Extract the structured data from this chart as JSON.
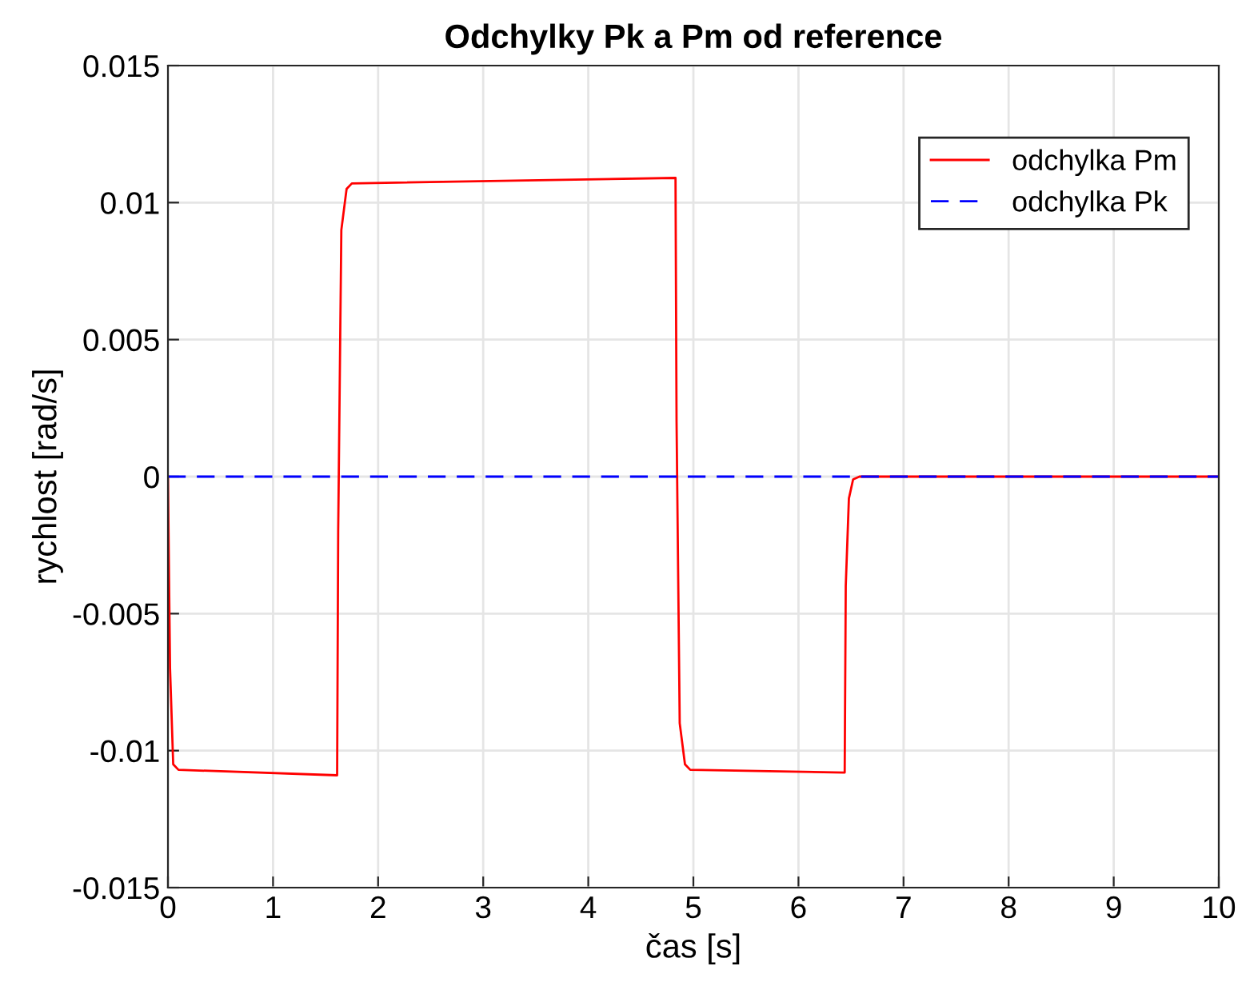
{
  "chart_data": {
    "type": "line",
    "title": "Odchylky Pk a Pm od reference",
    "xlabel": "čas [s]",
    "ylabel": "rychlost [rad/s]",
    "series": [
      {
        "name": "odchylka Pm",
        "color": "#ff0000",
        "line_style": "solid",
        "x": [
          0,
          0.02,
          0.05,
          0.1,
          1.61,
          1.62,
          1.65,
          1.7,
          1.75,
          4.83,
          4.84,
          4.87,
          4.92,
          4.97,
          6.44,
          6.45,
          6.48,
          6.52,
          6.58,
          10
        ],
        "values": [
          0,
          -0.007,
          -0.0105,
          -0.0107,
          -0.0109,
          -0.002,
          0.009,
          0.0105,
          0.0107,
          0.0109,
          0.002,
          -0.009,
          -0.0105,
          -0.0107,
          -0.0108,
          -0.004,
          -0.0008,
          -0.0001,
          0,
          0
        ]
      },
      {
        "name": "odchylka Pk",
        "color": "#0000ff",
        "line_style": "dashed",
        "x": [
          0,
          10
        ],
        "values": [
          0,
          0
        ]
      }
    ],
    "xlim": [
      0,
      10
    ],
    "xticks": [
      0,
      1,
      2,
      3,
      4,
      5,
      6,
      7,
      8,
      9,
      10
    ],
    "ylim": [
      -0.015,
      0.015
    ],
    "yticks": [
      -0.015,
      -0.01,
      -0.005,
      0,
      0.005,
      0.01,
      0.015
    ],
    "grid": true,
    "legend": "top right"
  }
}
